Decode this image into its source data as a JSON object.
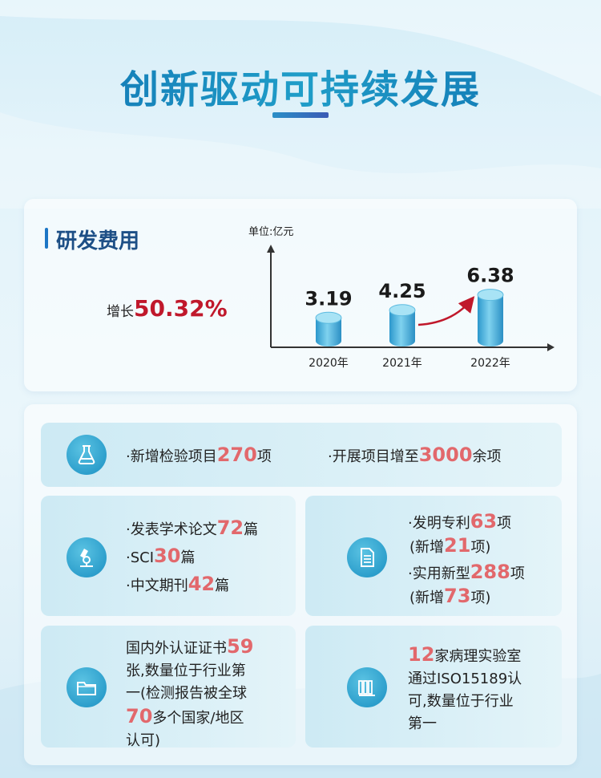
{
  "title": "创新驱动可持续发展",
  "rd": {
    "heading": "研发费用",
    "growth_label": "增长",
    "growth_value": "50.32%",
    "unit_label": "单位:亿元",
    "bars": [
      {
        "year": "2020年",
        "value": 3.19,
        "label": "3.19"
      },
      {
        "year": "2021年",
        "value": 4.25,
        "label": "4.25"
      },
      {
        "year": "2022年",
        "value": 6.38,
        "label": "6.38"
      }
    ]
  },
  "chart_data": {
    "type": "bar",
    "categories": [
      "2020年",
      "2021年",
      "2022年"
    ],
    "values": [
      3.19,
      4.25,
      6.38
    ],
    "title": "研发费用",
    "ylabel": "单位:亿元",
    "annotation": "增长50.32%"
  },
  "cards": {
    "inspection": {
      "icon": "lab-flask-icon",
      "item1_pre": "·新增检验项目",
      "item1_num": "270",
      "item1_post": "项",
      "item2_pre": "·开展项目增至",
      "item2_num": "3000",
      "item2_post": "余项"
    },
    "papers": {
      "icon": "microscope-icon",
      "line1_pre": "·发表学术论文",
      "line1_num": "72",
      "line1_post": "篇",
      "line2_pre": "·SCI",
      "line2_num": "30",
      "line2_post": "篇",
      "line3_pre": "·中文期刊",
      "line3_num": "42",
      "line3_post": "篇"
    },
    "patents": {
      "icon": "document-icon",
      "line1_pre": "·发明专利",
      "line1_num": "63",
      "line1_post": "项",
      "line2_pre": "(新增",
      "line2_num": "21",
      "line2_post": "项)",
      "line3_pre": "·实用新型",
      "line3_num": "288",
      "line3_post": "项",
      "line4_pre": "(新增",
      "line4_num": "73",
      "line4_post": "项)"
    },
    "certs": {
      "icon": "folder-icon",
      "line1_pre": "国内外认证证书",
      "line1_num": "59",
      "line2": "张,数量位于行业第",
      "line3": "一(检测报告被全球",
      "line4_num": "70",
      "line4_post": "多个国家/地区",
      "line5": "认可)"
    },
    "labs": {
      "icon": "books-icon",
      "line1_num": "12",
      "line1_post": "家病理实验室",
      "line2": "通过ISO15189认",
      "line3": "可,数量位于行业",
      "line4": "第一"
    }
  }
}
